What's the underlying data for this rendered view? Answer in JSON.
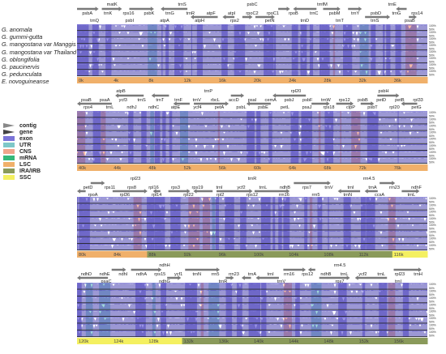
{
  "species": [
    "G. anomala",
    "G. gummi-gutta",
    "G. mangostana var Manggis",
    "G. mangostana var Thailand",
    "G. oblongifolia",
    "G. paucinervis",
    "G. pedunculata",
    "E. novoguineanse"
  ],
  "legend": [
    {
      "label": "contig",
      "kind": "arrow",
      "color": "#888888"
    },
    {
      "label": "gene",
      "kind": "arrow",
      "color": "#444444"
    },
    {
      "label": "exon",
      "kind": "box",
      "color": "#7b74d8"
    },
    {
      "label": "UTR",
      "kind": "box",
      "color": "#7ec8c8"
    },
    {
      "label": "CNS",
      "kind": "box",
      "color": "#f0a58c"
    },
    {
      "label": "mRNA",
      "kind": "box",
      "color": "#35b87a"
    },
    {
      "label": "LSC",
      "kind": "box",
      "color": "#f0b06a"
    },
    {
      "label": "IRA/IRB",
      "kind": "box",
      "color": "#8a9a5a"
    },
    {
      "label": "SSC",
      "kind": "box",
      "color": "#f4f060"
    }
  ],
  "pct_labels": [
    "100%",
    "50%"
  ],
  "panels": [
    {
      "genes_top": [
        "matK",
        "trnS",
        "psbC",
        "trnfM",
        "trnE"
      ],
      "genes_mid": [
        "psbA",
        "trnK",
        "rps16",
        "psbK",
        "trnG",
        "trnR",
        "atpF",
        "atpI",
        "rpoC2",
        "rpoC1",
        "rpoB",
        "trnC",
        "psbM",
        "trnY",
        "psbD",
        "trnG",
        "rps14"
      ],
      "genes_low": [
        "trnQ",
        "psbI",
        "atpA",
        "atpH",
        "rps2",
        "petN",
        "trnD",
        "trnT",
        "trnS",
        "psaB"
      ],
      "scale": [
        "0k",
        "4k",
        "8k",
        "12k",
        "16k",
        "20k",
        "24k",
        "28k",
        "32k",
        "36k"
      ],
      "region_colors": [
        "#f0b06a",
        "#f0b06a",
        "#f0b06a",
        "#f0b06a",
        "#f0b06a",
        "#f0b06a",
        "#f0b06a",
        "#f0b06a",
        "#f0b06a",
        "#f0b06a"
      ]
    },
    {
      "genes_top": [
        "atpB",
        "trnP",
        "rpl20",
        "psbH"
      ],
      "genes_mid": [
        "psaB",
        "psaA",
        "ycf3",
        "trnS",
        "trnT",
        "trnF",
        "trnV",
        "rbcL",
        "accD",
        "psaI",
        "cemA",
        "psbJ",
        "psbF",
        "trnW",
        "rps12",
        "psbB",
        "petD",
        "petB",
        "rpl33"
      ],
      "genes_low": [
        "rps4",
        "trnL",
        "ndhJ",
        "ndhC",
        "atpE",
        "ycf4",
        "petA",
        "psbL",
        "psbE",
        "petL",
        "psaJ",
        "rps18",
        "clpP",
        "psbT",
        "rpl20",
        "petG"
      ],
      "scale": [
        "40k",
        "44k",
        "48k",
        "52k",
        "56k",
        "60k",
        "64k",
        "68k",
        "72k",
        "76k"
      ],
      "region_colors": [
        "#f0b06a",
        "#f0b06a",
        "#f0b06a",
        "#f0b06a",
        "#f0b06a",
        "#f0b06a",
        "#f0b06a",
        "#f0b06a",
        "#f0b06a",
        "#f0b06a"
      ]
    },
    {
      "genes_top": [
        "rpl23",
        "trnR",
        "rrn4.5"
      ],
      "genes_mid": [
        "petD",
        "rps11",
        "rps8",
        "rpl16",
        "rps3",
        "rps19",
        "trnI",
        "ycf2",
        "trnL",
        "ndhB",
        "rps7",
        "trnV",
        "trnI",
        "trnA",
        "rrn23",
        "ndhF"
      ],
      "genes_low": [
        "rpoA",
        "rpl36",
        "rpl14",
        "rpl22",
        "rpl2",
        "rps12",
        "rrn16",
        "rrn5",
        "trnN",
        "ccsA",
        "trnL"
      ],
      "scale": [
        "80k",
        "84k",
        "88k",
        "92k",
        "96k",
        "100k",
        "104k",
        "108k",
        "112k",
        "116k"
      ],
      "region_colors": [
        "#f0b06a",
        "#f0b06a",
        "#8a9a5a",
        "#8a9a5a",
        "#8a9a5a",
        "#8a9a5a",
        "#8a9a5a",
        "#8a9a5a",
        "#8a9a5a",
        "#f4f060"
      ]
    },
    {
      "genes_top": [
        "ndhH",
        "rrn4.5"
      ],
      "genes_mid": [
        "ndhD",
        "ndhE",
        "ndhI",
        "ndhA",
        "rps15",
        "ycf1",
        "trnN",
        "rrn5",
        "rrn23",
        "trnA",
        "trnI",
        "rrn16",
        "rps12",
        "ndhB",
        "trnL",
        "ycf2",
        "trnL",
        "rpl23",
        "trnH"
      ],
      "genes_low": [
        "psaC",
        "ndhG",
        "trnR",
        "trnV",
        "rps7",
        "trnI"
      ],
      "scale": [
        "120k",
        "124k",
        "128k",
        "132k",
        "136k",
        "140k",
        "144k",
        "148k",
        "152k",
        "156k"
      ],
      "region_colors": [
        "#f4f060",
        "#f4f060",
        "#f4f060",
        "#8a9a5a",
        "#8a9a5a",
        "#8a9a5a",
        "#8a9a5a",
        "#8a9a5a",
        "#8a9a5a",
        "#8a9a5a"
      ]
    }
  ]
}
